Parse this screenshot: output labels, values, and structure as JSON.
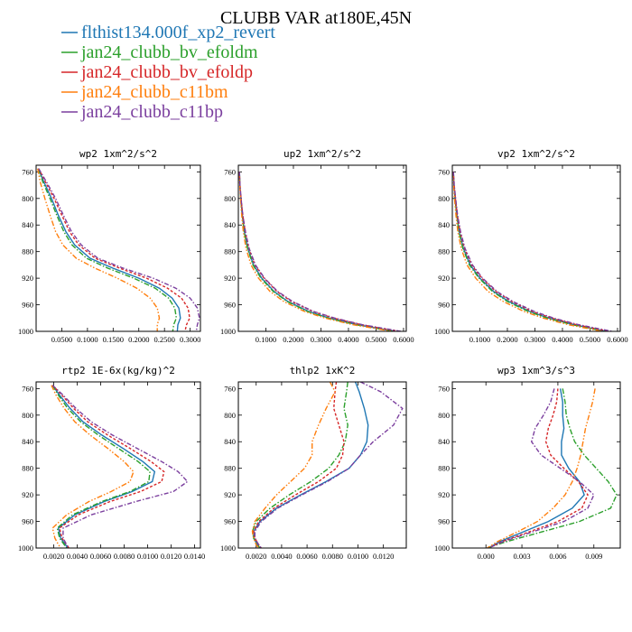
{
  "figure": {
    "title": "CLUBB VAR at180E,45N"
  },
  "legend": {
    "entries": [
      {
        "name": "flthist134.000f_xp2_revert",
        "color": "#1f77b4"
      },
      {
        "name": "jan24_clubb_bv_efoldm",
        "color": "#2ca02c"
      },
      {
        "name": "jan24_clubb_bv_efoldp",
        "color": "#d62728"
      },
      {
        "name": "jan24_clubb_c11bm",
        "color": "#ff7f0e"
      },
      {
        "name": "jan24_clubb_c11bp",
        "color": "#7b3f9e"
      }
    ]
  },
  "chart_data": [
    {
      "type": "line",
      "title": "wp2  1xm^2/s^2",
      "xlim": [
        0.0,
        0.32
      ],
      "ylim": [
        1000,
        750
      ],
      "yticks": [
        760,
        800,
        840,
        880,
        920,
        960,
        1000
      ],
      "xticks": [
        0.05,
        0.1,
        0.15,
        0.2,
        0.25,
        0.3
      ],
      "xtick_labels": [
        "0.0500",
        "0.1000",
        "0.1500",
        "0.2000",
        "0.2500",
        "0.3000"
      ],
      "y": [
        755,
        775,
        800,
        825,
        850,
        870,
        890,
        905,
        920,
        935,
        950,
        965,
        980,
        990,
        1000
      ],
      "series": [
        {
          "x": [
            0.004,
            0.015,
            0.03,
            0.043,
            0.058,
            0.075,
            0.105,
            0.15,
            0.2,
            0.24,
            0.265,
            0.278,
            0.281,
            0.276,
            0.275
          ]
        },
        {
          "x": [
            0.004,
            0.013,
            0.027,
            0.04,
            0.054,
            0.07,
            0.098,
            0.14,
            0.19,
            0.232,
            0.258,
            0.27,
            0.273,
            0.268,
            0.266
          ]
        },
        {
          "x": [
            0.005,
            0.018,
            0.035,
            0.05,
            0.065,
            0.083,
            0.115,
            0.163,
            0.215,
            0.256,
            0.283,
            0.296,
            0.299,
            0.293,
            0.29
          ]
        },
        {
          "x": [
            0.003,
            0.008,
            0.017,
            0.027,
            0.038,
            0.052,
            0.078,
            0.115,
            0.158,
            0.196,
            0.222,
            0.236,
            0.24,
            0.236,
            0.236
          ]
        },
        {
          "x": [
            0.005,
            0.02,
            0.038,
            0.053,
            0.069,
            0.088,
            0.12,
            0.17,
            0.228,
            0.272,
            0.3,
            0.314,
            0.318,
            0.314,
            0.312
          ]
        }
      ]
    },
    {
      "type": "line",
      "title": "up2  1xm^2/s^2",
      "xlim": [
        0.0,
        0.61
      ],
      "ylim": [
        1000,
        750
      ],
      "yticks": [
        760,
        800,
        840,
        880,
        920,
        960,
        1000
      ],
      "xticks": [
        0.1,
        0.2,
        0.3,
        0.4,
        0.5,
        0.6
      ],
      "xtick_labels": [
        "0.1000",
        "0.2000",
        "0.3000",
        "0.4000",
        "0.5000",
        "0.6000"
      ],
      "y": [
        760,
        780,
        800,
        825,
        850,
        875,
        900,
        920,
        940,
        955,
        970,
        980,
        990,
        1000
      ],
      "series": [
        {
          "x": [
            0.004,
            0.006,
            0.009,
            0.014,
            0.022,
            0.034,
            0.055,
            0.085,
            0.13,
            0.18,
            0.255,
            0.33,
            0.43,
            0.57
          ]
        },
        {
          "x": [
            0.004,
            0.006,
            0.009,
            0.014,
            0.021,
            0.033,
            0.053,
            0.082,
            0.127,
            0.177,
            0.25,
            0.325,
            0.425,
            0.565
          ]
        },
        {
          "x": [
            0.004,
            0.006,
            0.01,
            0.016,
            0.025,
            0.038,
            0.06,
            0.093,
            0.14,
            0.193,
            0.27,
            0.345,
            0.445,
            0.585
          ]
        },
        {
          "x": [
            0.004,
            0.005,
            0.008,
            0.012,
            0.018,
            0.028,
            0.046,
            0.073,
            0.115,
            0.165,
            0.24,
            0.315,
            0.415,
            0.56
          ]
        },
        {
          "x": [
            0.004,
            0.006,
            0.01,
            0.016,
            0.026,
            0.039,
            0.062,
            0.095,
            0.143,
            0.197,
            0.273,
            0.35,
            0.45,
            0.59
          ]
        }
      ]
    },
    {
      "type": "line",
      "title": "vp2  1xm^2/s^2",
      "xlim": [
        0.0,
        0.61
      ],
      "ylim": [
        1000,
        750
      ],
      "yticks": [
        760,
        800,
        840,
        880,
        920,
        960,
        1000
      ],
      "xticks": [
        0.1,
        0.2,
        0.3,
        0.4,
        0.5,
        0.6
      ],
      "xtick_labels": [
        "0.1000",
        "0.2000",
        "0.3000",
        "0.4000",
        "0.5000",
        "0.6000"
      ],
      "y": [
        760,
        780,
        800,
        825,
        850,
        875,
        900,
        920,
        940,
        955,
        970,
        980,
        990,
        1000
      ],
      "series": [
        {
          "x": [
            0.004,
            0.006,
            0.01,
            0.016,
            0.025,
            0.04,
            0.065,
            0.1,
            0.15,
            0.205,
            0.28,
            0.35,
            0.44,
            0.56
          ]
        },
        {
          "x": [
            0.004,
            0.006,
            0.01,
            0.016,
            0.024,
            0.038,
            0.062,
            0.097,
            0.146,
            0.2,
            0.275,
            0.345,
            0.435,
            0.555
          ]
        },
        {
          "x": [
            0.004,
            0.007,
            0.011,
            0.018,
            0.028,
            0.044,
            0.07,
            0.107,
            0.158,
            0.215,
            0.29,
            0.36,
            0.45,
            0.57
          ]
        },
        {
          "x": [
            0.004,
            0.005,
            0.008,
            0.013,
            0.02,
            0.032,
            0.053,
            0.085,
            0.13,
            0.185,
            0.26,
            0.33,
            0.42,
            0.545
          ]
        },
        {
          "x": [
            0.004,
            0.007,
            0.012,
            0.019,
            0.03,
            0.046,
            0.073,
            0.11,
            0.162,
            0.22,
            0.297,
            0.368,
            0.458,
            0.58
          ]
        }
      ]
    },
    {
      "type": "line",
      "title": "rtp2  1E-6x(kg/kg)^2",
      "xlim": [
        0.0005,
        0.0145
      ],
      "ylim": [
        1000,
        750
      ],
      "yticks": [
        760,
        800,
        840,
        880,
        920,
        960,
        1000
      ],
      "xticks": [
        0.002,
        0.004,
        0.006,
        0.008,
        0.01,
        0.012,
        0.014
      ],
      "xtick_labels": [
        "0.0020",
        "0.0040",
        "0.0060",
        "0.0080",
        "0.0100",
        "0.0120",
        "0.0140"
      ],
      "y": [
        755,
        770,
        790,
        810,
        830,
        850,
        870,
        885,
        900,
        915,
        930,
        950,
        970,
        985,
        995,
        1000
      ],
      "series": [
        {
          "x": [
            0.0019,
            0.0025,
            0.0034,
            0.0045,
            0.0061,
            0.0079,
            0.0096,
            0.0106,
            0.0104,
            0.0087,
            0.0063,
            0.0038,
            0.0024,
            0.0026,
            0.003,
            0.0032
          ]
        },
        {
          "x": [
            0.0019,
            0.0024,
            0.0032,
            0.0043,
            0.0058,
            0.0075,
            0.0092,
            0.0102,
            0.0101,
            0.0085,
            0.0061,
            0.0036,
            0.0023,
            0.0025,
            0.0029,
            0.0031
          ]
        },
        {
          "x": [
            0.0019,
            0.0027,
            0.0037,
            0.0049,
            0.0066,
            0.0085,
            0.0103,
            0.0114,
            0.0112,
            0.0094,
            0.0068,
            0.0041,
            0.0025,
            0.0027,
            0.0031,
            0.0033
          ]
        },
        {
          "x": [
            0.0018,
            0.0022,
            0.0029,
            0.0038,
            0.0051,
            0.0066,
            0.008,
            0.0088,
            0.0085,
            0.0069,
            0.005,
            0.0031,
            0.0019,
            0.0021,
            0.0024,
            0.0026
          ]
        },
        {
          "x": [
            0.0019,
            0.0028,
            0.0039,
            0.0052,
            0.007,
            0.0091,
            0.0112,
            0.0126,
            0.0134,
            0.0122,
            0.009,
            0.0052,
            0.0028,
            0.0028,
            0.0031,
            0.0033
          ]
        }
      ]
    },
    {
      "type": "line",
      "title": "thlp2  1xK^2",
      "xlim": [
        0.0006,
        0.0138
      ],
      "ylim": [
        1000,
        750
      ],
      "yticks": [
        760,
        800,
        840,
        880,
        920,
        960,
        1000
      ],
      "xticks": [
        0.002,
        0.004,
        0.006,
        0.008,
        0.01,
        0.012
      ],
      "xtick_labels": [
        "0.0020",
        "0.0040",
        "0.0060",
        "0.0080",
        "0.0100",
        "0.0120"
      ],
      "y": [
        750,
        765,
        790,
        815,
        840,
        860,
        880,
        900,
        920,
        940,
        960,
        975,
        985,
        995,
        1000
      ],
      "series": [
        {
          "x": [
            0.0098,
            0.0101,
            0.0105,
            0.0108,
            0.0107,
            0.0102,
            0.0093,
            0.0075,
            0.0055,
            0.0036,
            0.0023,
            0.0018,
            0.0018,
            0.0021,
            0.0023
          ]
        },
        {
          "x": [
            0.0092,
            0.0091,
            0.0089,
            0.0092,
            0.009,
            0.0085,
            0.0077,
            0.0063,
            0.0046,
            0.0031,
            0.002,
            0.0017,
            0.0018,
            0.0021,
            0.0023
          ]
        },
        {
          "x": [
            0.0083,
            0.0082,
            0.0081,
            0.0085,
            0.0089,
            0.0088,
            0.0083,
            0.0069,
            0.0051,
            0.0034,
            0.0022,
            0.0018,
            0.0019,
            0.0022,
            0.0024
          ]
        },
        {
          "x": [
            0.0078,
            0.0082,
            0.0075,
            0.0069,
            0.0064,
            0.0064,
            0.0058,
            0.0047,
            0.0036,
            0.0027,
            0.0019,
            0.0017,
            0.0018,
            0.002,
            0.0022
          ]
        },
        {
          "x": [
            0.0102,
            0.0118,
            0.0135,
            0.0128,
            0.0112,
            0.0102,
            0.0093,
            0.0076,
            0.0056,
            0.0037,
            0.0024,
            0.0019,
            0.0019,
            0.0022,
            0.0024
          ]
        }
      ]
    },
    {
      "type": "line",
      "title": "wp3  1xm^3/s^3",
      "xlim": [
        -0.0028,
        0.0112
      ],
      "ylim": [
        1000,
        750
      ],
      "yticks": [
        760,
        800,
        840,
        880,
        920,
        960,
        1000
      ],
      "xticks": [
        0.0,
        0.003,
        0.006,
        0.009
      ],
      "xtick_labels": [
        "0.000",
        "0.003",
        "0.006",
        "0.009"
      ],
      "y": [
        760,
        780,
        800,
        820,
        840,
        860,
        880,
        900,
        920,
        940,
        960,
        975,
        990,
        1000
      ],
      "series": [
        {
          "x": [
            0.0062,
            0.0064,
            0.0064,
            0.0065,
            0.0063,
            0.0063,
            0.0069,
            0.0078,
            0.0082,
            0.0072,
            0.0052,
            0.0032,
            0.0012,
            0.0002
          ]
        },
        {
          "x": [
            0.0064,
            0.0066,
            0.0067,
            0.007,
            0.0074,
            0.0082,
            0.0092,
            0.0102,
            0.0109,
            0.0104,
            0.0078,
            0.0048,
            0.0018,
            0.0001
          ]
        },
        {
          "x": [
            0.006,
            0.0059,
            0.0056,
            0.0052,
            0.005,
            0.0054,
            0.0065,
            0.0077,
            0.0085,
            0.008,
            0.006,
            0.0037,
            0.0014,
            0.0002
          ]
        },
        {
          "x": [
            0.0091,
            0.0089,
            0.0086,
            0.0083,
            0.0081,
            0.0079,
            0.0076,
            0.0072,
            0.0066,
            0.0056,
            0.0043,
            0.0027,
            0.001,
            0.0001
          ]
        },
        {
          "x": [
            0.0057,
            0.0054,
            0.0048,
            0.0041,
            0.0038,
            0.0046,
            0.0062,
            0.0078,
            0.009,
            0.0085,
            0.0065,
            0.004,
            0.0015,
            0.0002
          ]
        }
      ]
    }
  ]
}
